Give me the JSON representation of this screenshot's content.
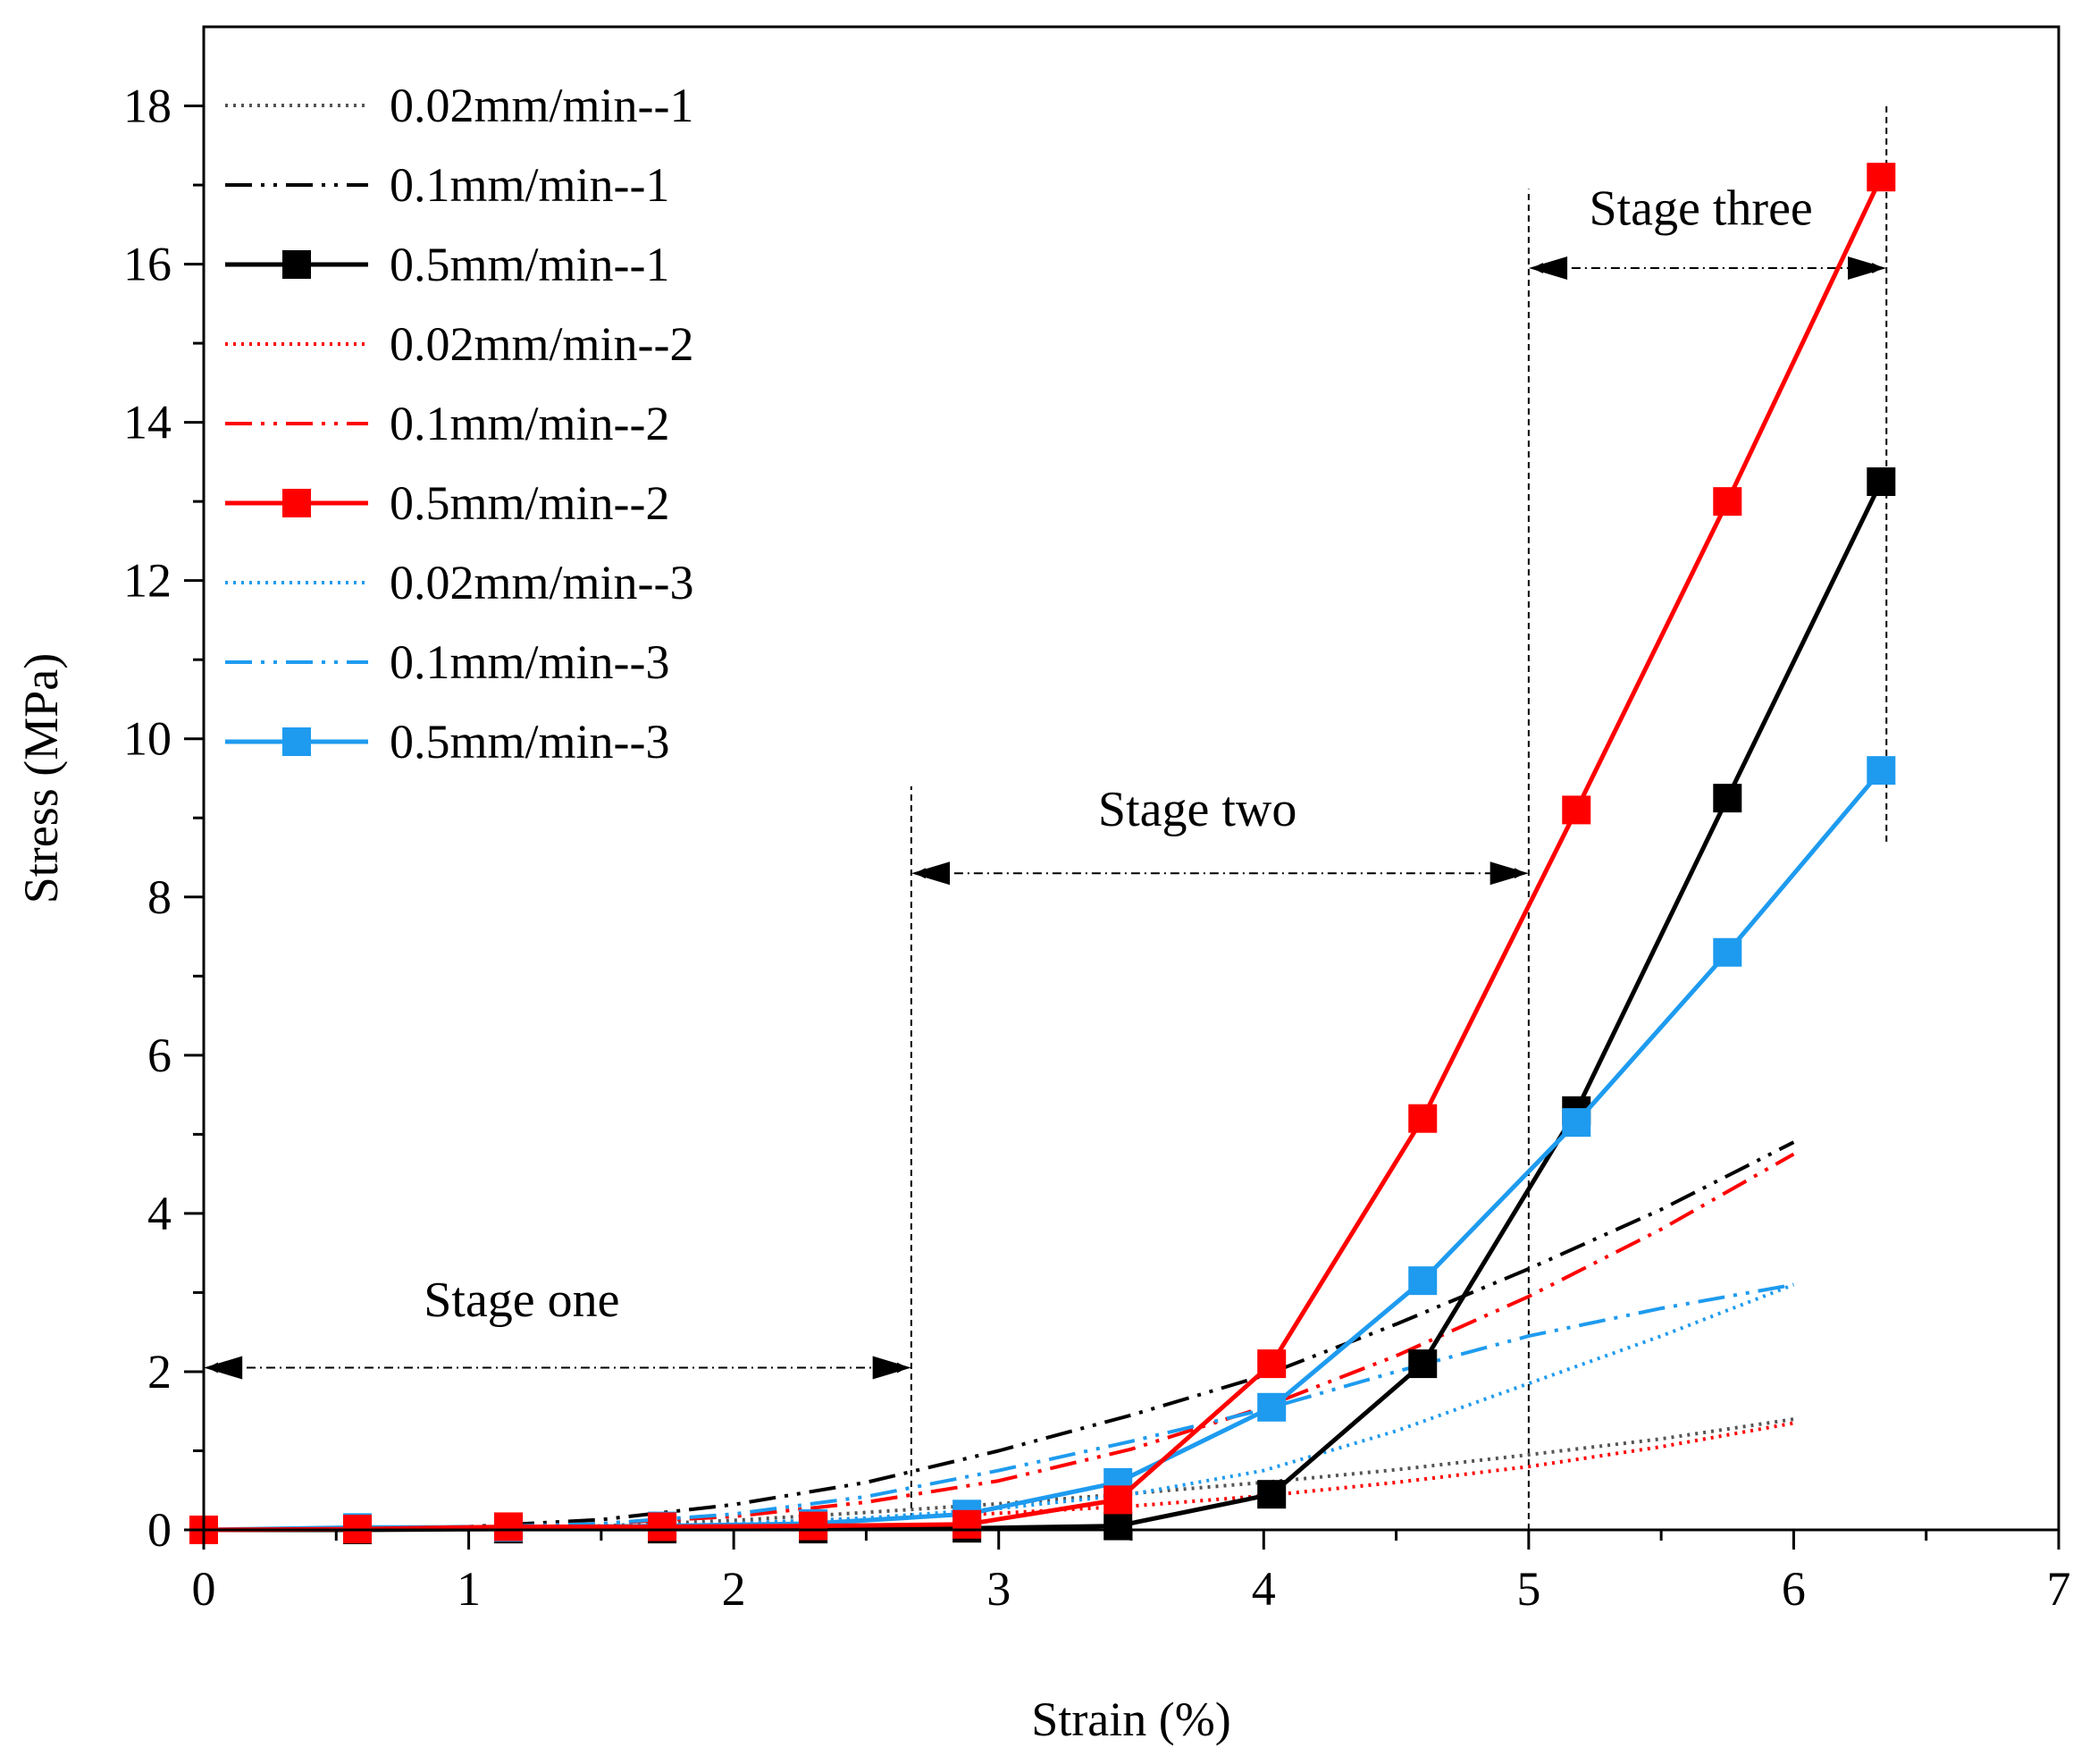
{
  "chart_data": {
    "type": "line",
    "title": "",
    "xlabel": "Strain (%)",
    "ylabel": "Stress (MPa)",
    "xlim": [
      0,
      7
    ],
    "ylim": [
      0,
      19
    ],
    "xticks": [
      0,
      1,
      2,
      3,
      4,
      5,
      6,
      7
    ],
    "yticks": [
      0,
      2,
      4,
      6,
      8,
      10,
      12,
      14,
      16,
      18
    ],
    "legend_position": "top-left",
    "series": [
      {
        "name": "0.02mm/min--1",
        "color": "#555555",
        "style": "dot",
        "marker": false,
        "x": [
          0,
          0.5,
          1,
          1.5,
          2,
          2.5,
          3,
          3.5,
          4,
          4.5,
          5,
          5.5,
          6
        ],
        "y": [
          0,
          0.01,
          0.02,
          0.05,
          0.12,
          0.22,
          0.33,
          0.46,
          0.6,
          0.76,
          0.95,
          1.15,
          1.4
        ]
      },
      {
        "name": "0.1mm/min--1",
        "color": "#000000",
        "style": "dashdotdot",
        "marker": false,
        "x": [
          0,
          0.5,
          1,
          1.5,
          2,
          2.5,
          3,
          3.5,
          4,
          4.5,
          5,
          5.5,
          6
        ],
        "y": [
          0,
          0.01,
          0.04,
          0.13,
          0.32,
          0.6,
          1.0,
          1.45,
          1.95,
          2.6,
          3.3,
          4.05,
          4.9
        ]
      },
      {
        "name": "0.5mm/min--1",
        "color": "#000000",
        "style": "solid",
        "marker": true,
        "x": [
          0,
          0.58,
          1.15,
          1.73,
          2.3,
          2.88,
          3.45,
          4.03,
          4.6,
          5.18,
          5.75,
          6.33
        ],
        "y": [
          0,
          0,
          0.01,
          0.01,
          0.01,
          0.02,
          0.05,
          0.45,
          2.1,
          5.3,
          9.25,
          13.25
        ]
      },
      {
        "name": "0.02mm/min--2",
        "color": "#ff0000",
        "style": "dot",
        "marker": false,
        "x": [
          0,
          0.5,
          1,
          1.5,
          2,
          2.5,
          3,
          3.5,
          4,
          4.5,
          5,
          5.5,
          6
        ],
        "y": [
          0,
          0.01,
          0.02,
          0.04,
          0.08,
          0.14,
          0.21,
          0.3,
          0.43,
          0.6,
          0.8,
          1.05,
          1.35
        ]
      },
      {
        "name": "0.1mm/min--2",
        "color": "#ff0000",
        "style": "dashdotdot",
        "marker": false,
        "x": [
          0,
          0.5,
          1,
          1.5,
          2,
          2.5,
          3,
          3.5,
          4,
          4.5,
          5,
          5.5,
          6
        ],
        "y": [
          0,
          0.01,
          0.03,
          0.08,
          0.17,
          0.35,
          0.62,
          1.02,
          1.55,
          2.2,
          2.95,
          3.8,
          4.75
        ]
      },
      {
        "name": "0.5mm/min--2",
        "color": "#ff0000",
        "style": "solid",
        "marker": true,
        "x": [
          0,
          0.58,
          1.15,
          1.73,
          2.3,
          2.88,
          3.45,
          4.03,
          4.6,
          5.18,
          5.75,
          6.33
        ],
        "y": [
          0,
          0.01,
          0.04,
          0.04,
          0.05,
          0.07,
          0.38,
          2.1,
          5.2,
          9.1,
          13.0,
          17.1
        ]
      },
      {
        "name": "0.02mm/min--3",
        "color": "#1e9bef",
        "style": "dot",
        "marker": false,
        "x": [
          0,
          0.5,
          1,
          1.5,
          2,
          2.5,
          3,
          3.5,
          4,
          4.5,
          5,
          5.5,
          6
        ],
        "y": [
          0,
          0.01,
          0.02,
          0.04,
          0.08,
          0.15,
          0.27,
          0.45,
          0.75,
          1.25,
          1.85,
          2.45,
          3.1
        ]
      },
      {
        "name": "0.1mm/min--3",
        "color": "#1e9bef",
        "style": "dashdotdot",
        "marker": false,
        "x": [
          0,
          0.5,
          1,
          1.5,
          2,
          2.5,
          3,
          3.5,
          4,
          4.5,
          5,
          5.5,
          6
        ],
        "y": [
          0,
          0.01,
          0.03,
          0.08,
          0.2,
          0.42,
          0.75,
          1.12,
          1.52,
          2.0,
          2.45,
          2.8,
          3.1
        ]
      },
      {
        "name": "0.5mm/min--3",
        "color": "#1e9bef",
        "style": "solid",
        "marker": true,
        "x": [
          0,
          0.58,
          1.15,
          1.73,
          2.3,
          2.88,
          3.45,
          4.03,
          4.6,
          5.18,
          5.75,
          6.33
        ],
        "y": [
          0,
          0.03,
          0.03,
          0.05,
          0.08,
          0.2,
          0.6,
          1.55,
          3.15,
          5.15,
          7.3,
          9.6
        ]
      }
    ],
    "annotations": [
      {
        "label": "Stage one",
        "from": 0,
        "to": 2.67,
        "arrow_y": 2.05,
        "label_x": 1.2,
        "label_y": 2.7
      },
      {
        "label": "Stage two",
        "from": 2.67,
        "to": 5.0,
        "arrow_y": 8.3,
        "label_x": 3.75,
        "label_y": 8.9
      },
      {
        "label": "Stage three",
        "from": 5.0,
        "to": 6.35,
        "arrow_y": 15.95,
        "label_x": 5.65,
        "label_y": 16.5
      }
    ],
    "guide_lines": [
      {
        "x": 2.67,
        "y_from": 0,
        "y_to": 9.4
      },
      {
        "x": 5.0,
        "y_from": 0,
        "y_to": 16.95
      },
      {
        "x": 6.35,
        "y_from": 8.7,
        "y_to": 18.0
      }
    ]
  }
}
